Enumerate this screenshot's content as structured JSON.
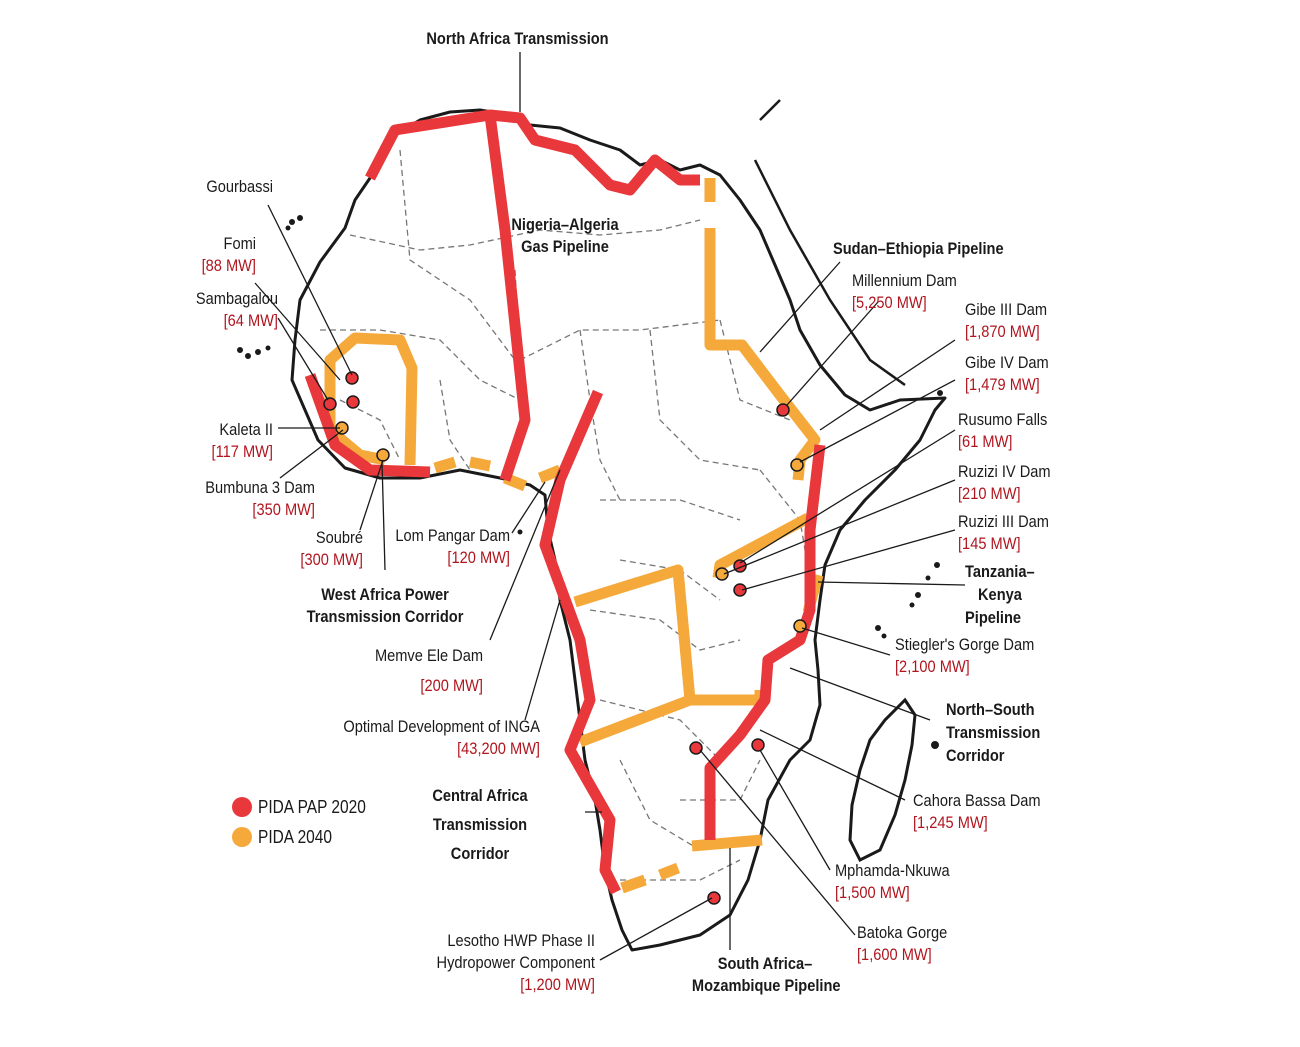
{
  "colors": {
    "pap2020": "#e8383b",
    "pida2040": "#f5a93a",
    "outline": "#1a1a1a",
    "border": "#777777",
    "mw_text": "#b0151e"
  },
  "legend": {
    "items": [
      {
        "label": "PIDA PAP 2020",
        "color": "#e8383b"
      },
      {
        "label": "PIDA 2040",
        "color": "#f5a93a"
      }
    ]
  },
  "corridors": {
    "north_africa": "North Africa Transmission",
    "nigeria_algeria_1": "Nigeria–Algeria",
    "nigeria_algeria_2": "Gas Pipeline",
    "sudan_ethiopia": "Sudan–Ethiopia Pipeline",
    "west_africa_1": "West Africa Power",
    "west_africa_2": "Transmission Corridor",
    "tanzania_kenya_1": "Tanzania–",
    "tanzania_kenya_2": "Kenya",
    "tanzania_kenya_3": "Pipeline",
    "north_south_1": "North–South",
    "north_south_2": "Transmission",
    "north_south_3": "Corridor",
    "central_africa_1": "Central Africa",
    "central_africa_2": "Transmission",
    "central_africa_3": "Corridor",
    "sa_moz_1": "South Africa–",
    "sa_moz_2": "Mozambique Pipeline"
  },
  "projects": {
    "gourbassi": {
      "name": "Gourbassi"
    },
    "fomi": {
      "name": "Fomi",
      "mw": "[88 MW]"
    },
    "sambagalou": {
      "name": "Sambagalou",
      "mw": "[64 MW]"
    },
    "kaleta": {
      "name": "Kaleta II",
      "mw": "[117 MW]"
    },
    "bumbuna": {
      "name": "Bumbuna 3 Dam",
      "mw": "[350 MW]"
    },
    "soubre": {
      "name": "Soubré",
      "mw": "[300 MW]"
    },
    "lom_pangar": {
      "name": "Lom Pangar Dam",
      "mw": "[120 MW]"
    },
    "memve_ele": {
      "name": "Memve Ele Dam",
      "mw": "[200 MW]"
    },
    "inga": {
      "name": "Optimal Development of INGA",
      "mw": "[43,200 MW]"
    },
    "lesotho_1": {
      "name": "Lesotho HWP Phase II"
    },
    "lesotho_2": {
      "name": "Hydropower Component",
      "mw": "[1,200 MW]"
    },
    "millennium": {
      "name": "Millennium Dam",
      "mw": "[5,250 MW]"
    },
    "gibe3": {
      "name": "Gibe III Dam",
      "mw": "[1,870 MW]"
    },
    "gibe4": {
      "name": "Gibe IV Dam",
      "mw": "[1,479 MW]"
    },
    "rusumo": {
      "name": "Rusumo Falls",
      "mw": "[61 MW]"
    },
    "ruzizi4": {
      "name": "Ruzizi IV Dam",
      "mw": "[210 MW]"
    },
    "ruzizi3": {
      "name": "Ruzizi III Dam",
      "mw": "[145 MW]"
    },
    "stiegler": {
      "name": "Stiegler's Gorge Dam",
      "mw": "[2,100 MW]"
    },
    "cahora": {
      "name": "Cahora Bassa Dam",
      "mw": "[1,245 MW]"
    },
    "mphamda": {
      "name": "Mphamda-Nkuwa",
      "mw": "[1,500 MW]"
    },
    "batoka": {
      "name": "Batoka Gorge",
      "mw": "[1,600 MW]"
    }
  }
}
